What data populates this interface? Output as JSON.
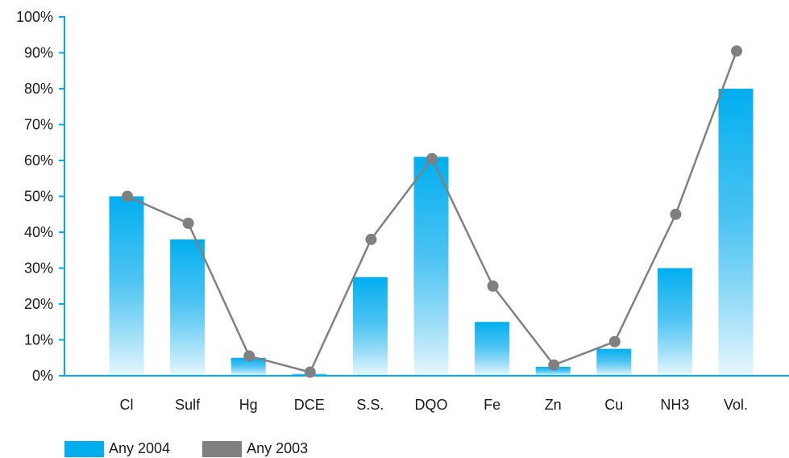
{
  "chart_data": {
    "type": "bar",
    "title": "",
    "xlabel": "",
    "ylabel": "",
    "categories": [
      "Cl",
      "Sulf",
      "Hg",
      "DCE",
      "S.S.",
      "DQO",
      "Fe",
      "Zn",
      "Cu",
      "NH3",
      "Vol."
    ],
    "ylim": [
      0,
      100
    ],
    "yticks": [
      "0%",
      "10%",
      "20%",
      "30%",
      "40%",
      "50%",
      "60%",
      "70%",
      "80%",
      "90%",
      "100%"
    ],
    "grid": false,
    "legend_position": "bottom-left",
    "series": [
      {
        "name": "Any 2004",
        "type": "bar",
        "color": "#00aeef",
        "values": [
          50,
          38,
          5,
          0.5,
          27.5,
          61,
          15,
          2.5,
          7.5,
          30,
          80
        ]
      },
      {
        "name": "Any 2003",
        "type": "line",
        "color": "#808080",
        "values": [
          50,
          42.5,
          5.5,
          1,
          38,
          60.5,
          25,
          3,
          9.5,
          45,
          90.5
        ]
      }
    ]
  }
}
